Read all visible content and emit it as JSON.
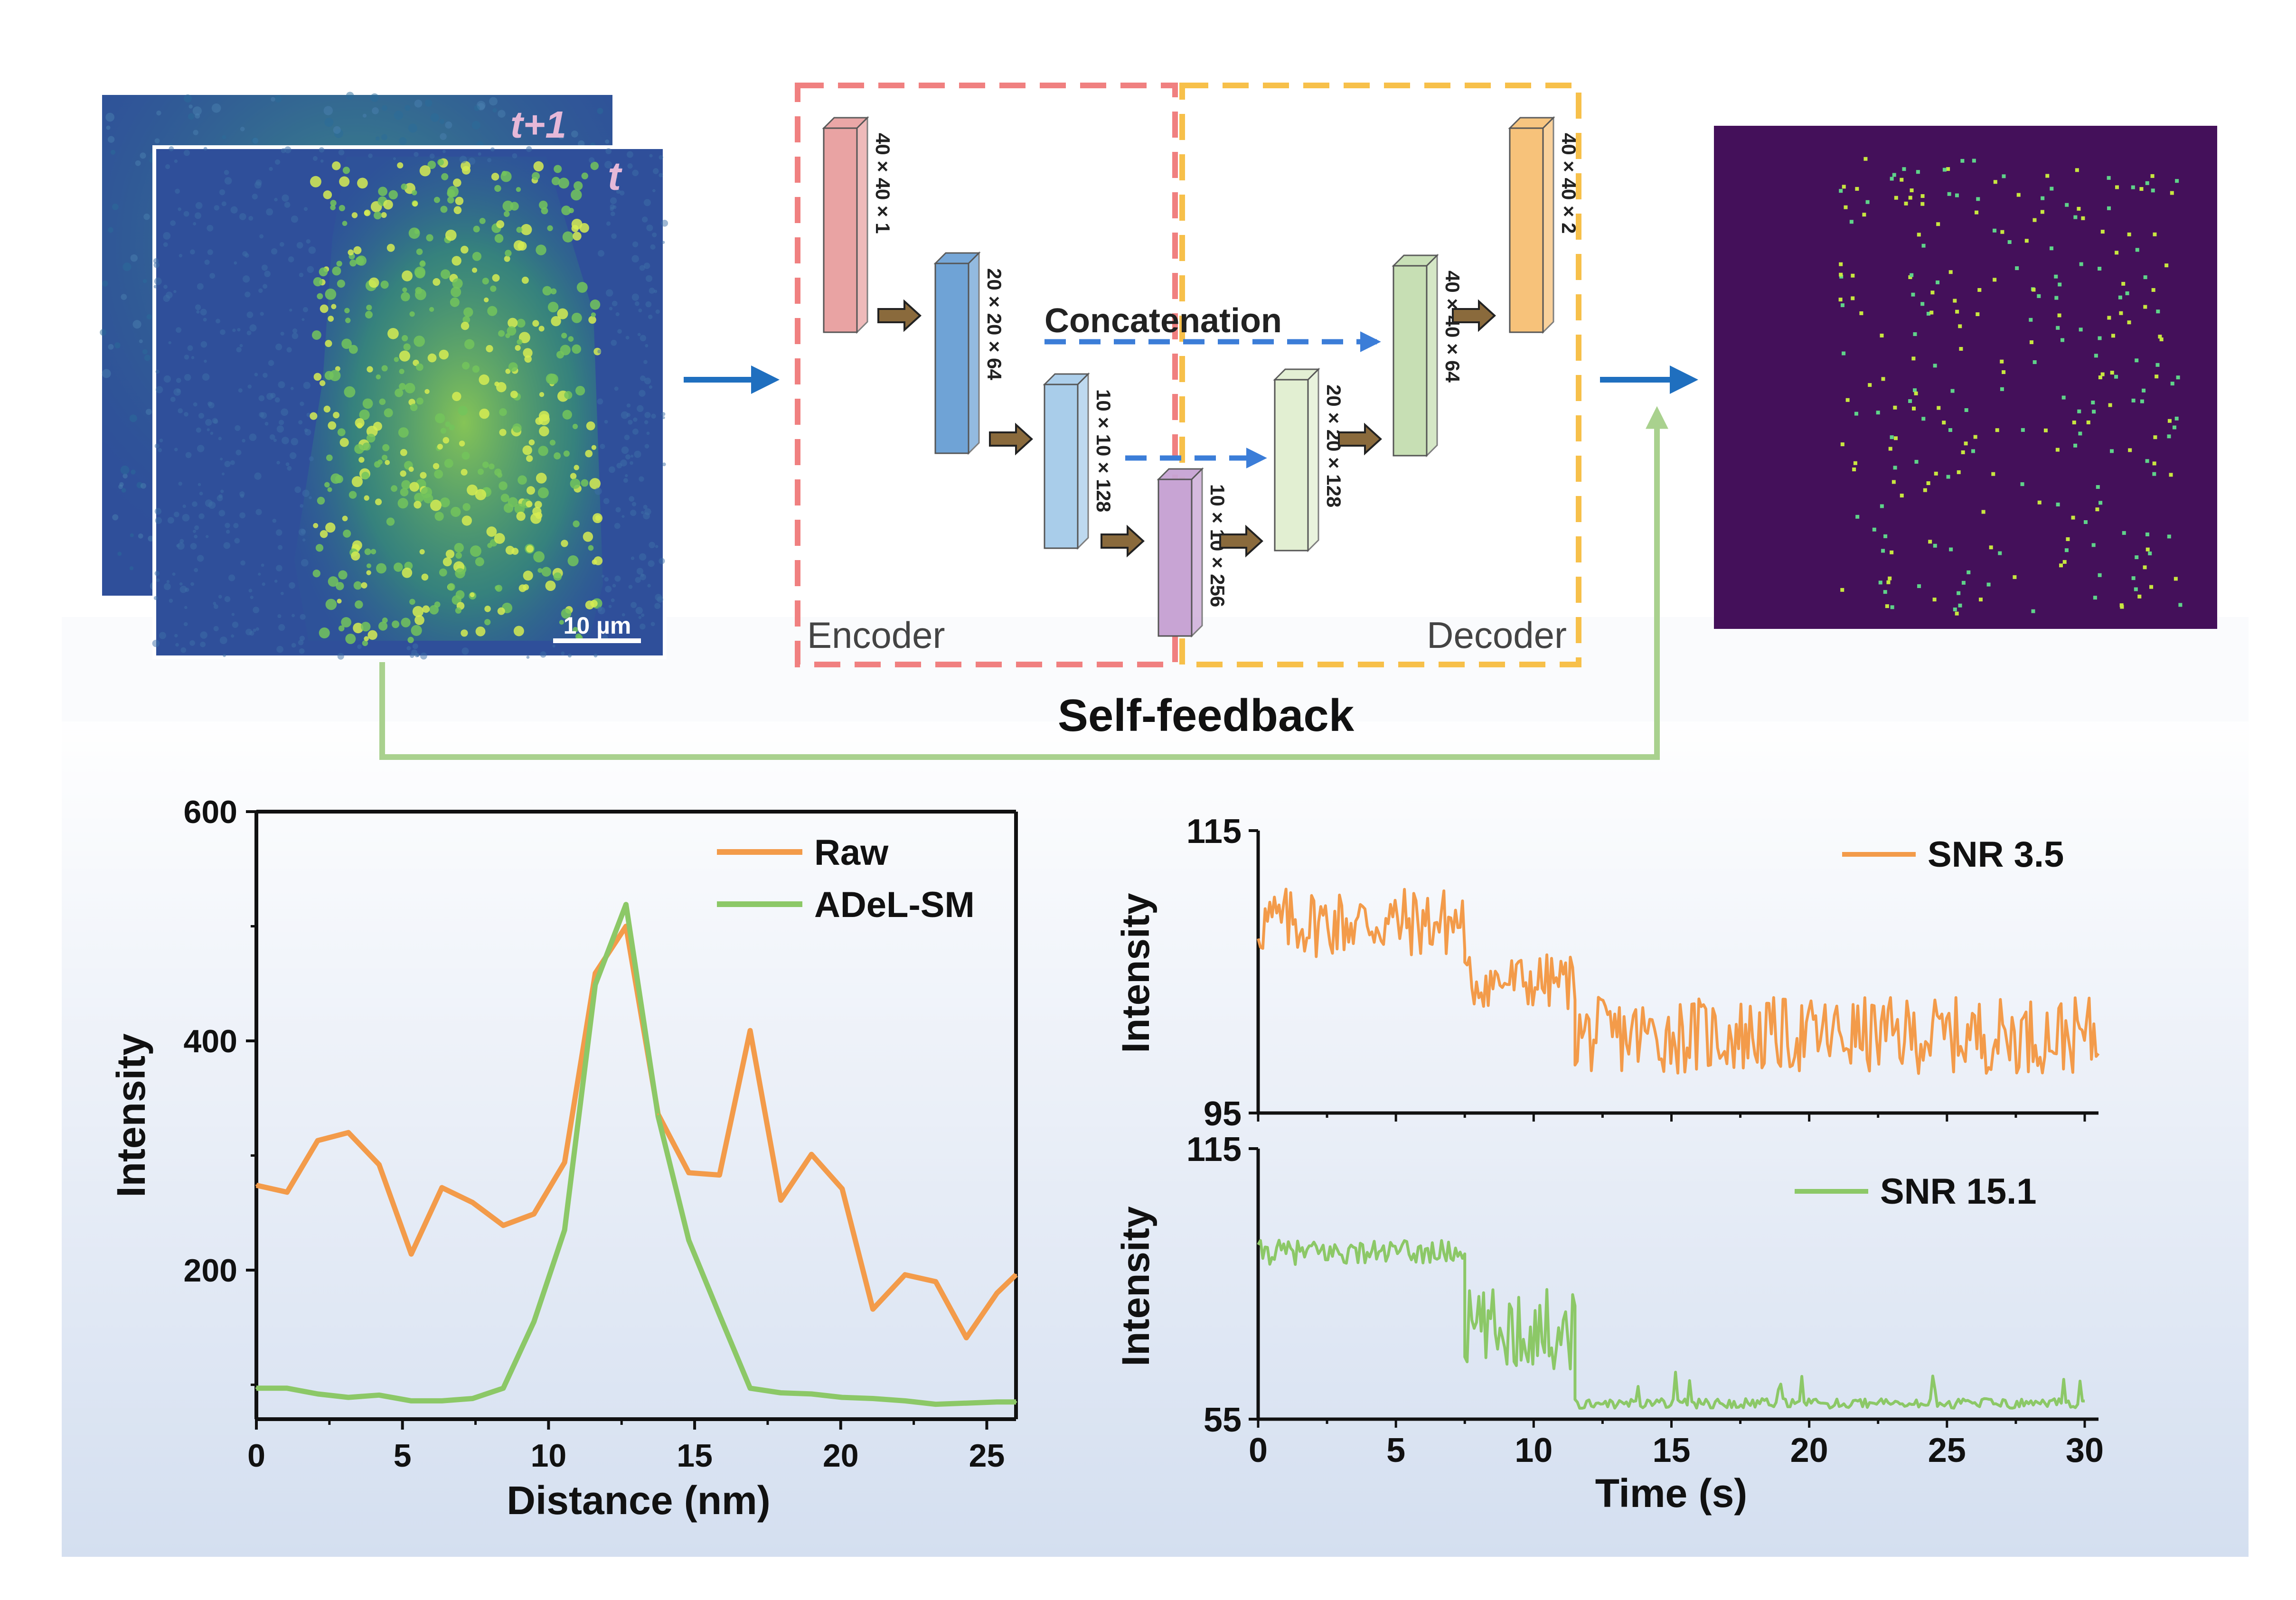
{
  "microscopy": {
    "frame_back_label": "t+1",
    "frame_front_label": "t",
    "scale_bar_label": "10 µm"
  },
  "network": {
    "encoder_label": "Encoder",
    "decoder_label": "Decoder",
    "concat_label": "Concatenation",
    "feedback_label": "Self-feedback",
    "layers": [
      {
        "dims": "40 × 40 × 1",
        "color": "#e9a3a3"
      },
      {
        "dims": "20 × 20 × 64",
        "color": "#6fa3d6"
      },
      {
        "dims": "10 × 10 × 128",
        "color": "#a9cdea"
      },
      {
        "dims": "10 × 10 × 256",
        "color": "#c8a4d4"
      },
      {
        "dims": "20 × 20 × 128",
        "color": "#e2efd2"
      },
      {
        "dims": "40 × 40 × 64",
        "color": "#c7dfb4"
      },
      {
        "dims": "40 × 40 × 2",
        "color": "#f7c27a"
      }
    ]
  },
  "colors": {
    "raw": "#f39b4a",
    "adel": "#8cc867",
    "arrow_blue": "#1f6fbf",
    "feedback_green": "#a9d18e",
    "encoder_box": "#f08080",
    "decoder_box": "#f7c04a",
    "output_bg": "#44105a"
  },
  "chart_data": [
    {
      "type": "line",
      "xlabel": "Distance (nm)",
      "ylabel": "Intensity",
      "xlim": [
        0,
        26
      ],
      "ylim": [
        70,
        600
      ],
      "x_ticks": [
        "0",
        "5",
        "10",
        "15",
        "20",
        "25"
      ],
      "y_ticks": [
        "200",
        "400",
        "600"
      ],
      "legend_position": "top-right",
      "series": [
        {
          "name": "Raw",
          "x": [
            0,
            1.05,
            2.1,
            3.15,
            4.2,
            5.3,
            6.35,
            7.4,
            8.45,
            9.5,
            10.55,
            11.6,
            12.65,
            13.75,
            14.8,
            15.85,
            16.9,
            17.95,
            19.0,
            20.05,
            21.1,
            22.2,
            23.25,
            24.3,
            25.35,
            26.0
          ],
          "y": [
            274,
            268,
            313,
            320,
            292,
            214,
            272,
            259,
            239,
            249,
            294,
            459,
            500,
            336,
            285,
            283,
            409,
            261,
            301,
            271,
            166,
            196,
            190,
            141,
            180,
            196
          ]
        },
        {
          "name": "ADeL-SM",
          "x": [
            0,
            1.05,
            2.1,
            3.15,
            4.2,
            5.3,
            6.35,
            7.4,
            8.45,
            9.5,
            10.55,
            11.6,
            12.65,
            13.75,
            14.8,
            15.85,
            16.9,
            17.95,
            19.0,
            20.05,
            21.1,
            22.2,
            23.25,
            24.3,
            25.35,
            26.0
          ],
          "y": [
            97,
            97,
            92,
            89,
            91,
            86,
            86,
            88,
            97,
            155,
            235,
            449,
            519,
            334,
            226,
            161,
            97,
            93,
            92,
            89,
            88,
            86,
            83,
            84,
            85,
            85
          ]
        }
      ]
    },
    {
      "type": "line",
      "ylabel": "Intensity",
      "xlim": [
        0,
        30.5
      ],
      "ylim": [
        95,
        115
      ],
      "y_ticks": [
        "95",
        "115"
      ],
      "legend_position": "top-right",
      "series": [
        {
          "name": "SNR 3.5",
          "levels": [
            {
              "t0": 0,
              "t1": 7.5,
              "mean": 108.5,
              "noise": 1.4
            },
            {
              "t0": 7.5,
              "t1": 11.5,
              "mean": 104.3,
              "noise": 1.1
            },
            {
              "t0": 11.5,
              "t1": 30.5,
              "mean": 100.5,
              "noise": 1.5
            }
          ]
        }
      ]
    },
    {
      "type": "line",
      "xlabel": "Time (s)",
      "ylabel": "Intensity",
      "xlim": [
        0,
        30.5
      ],
      "ylim": [
        55,
        115
      ],
      "x_ticks": [
        "0",
        "5",
        "10",
        "15",
        "20",
        "25",
        "30"
      ],
      "y_ticks": [
        "55",
        "115"
      ],
      "legend_position": "top-right",
      "series": [
        {
          "name": "SNR 15.1",
          "levels": [
            {
              "t0": 0,
              "t1": 7.5,
              "mean": 92,
              "noise": 1.5
            },
            {
              "t0": 7.5,
              "t1": 11.5,
              "mean": 75,
              "noise": 5
            },
            {
              "t0": 11.5,
              "t1": 30.0,
              "mean": 58.5,
              "noise": 0.6
            }
          ]
        }
      ]
    }
  ]
}
